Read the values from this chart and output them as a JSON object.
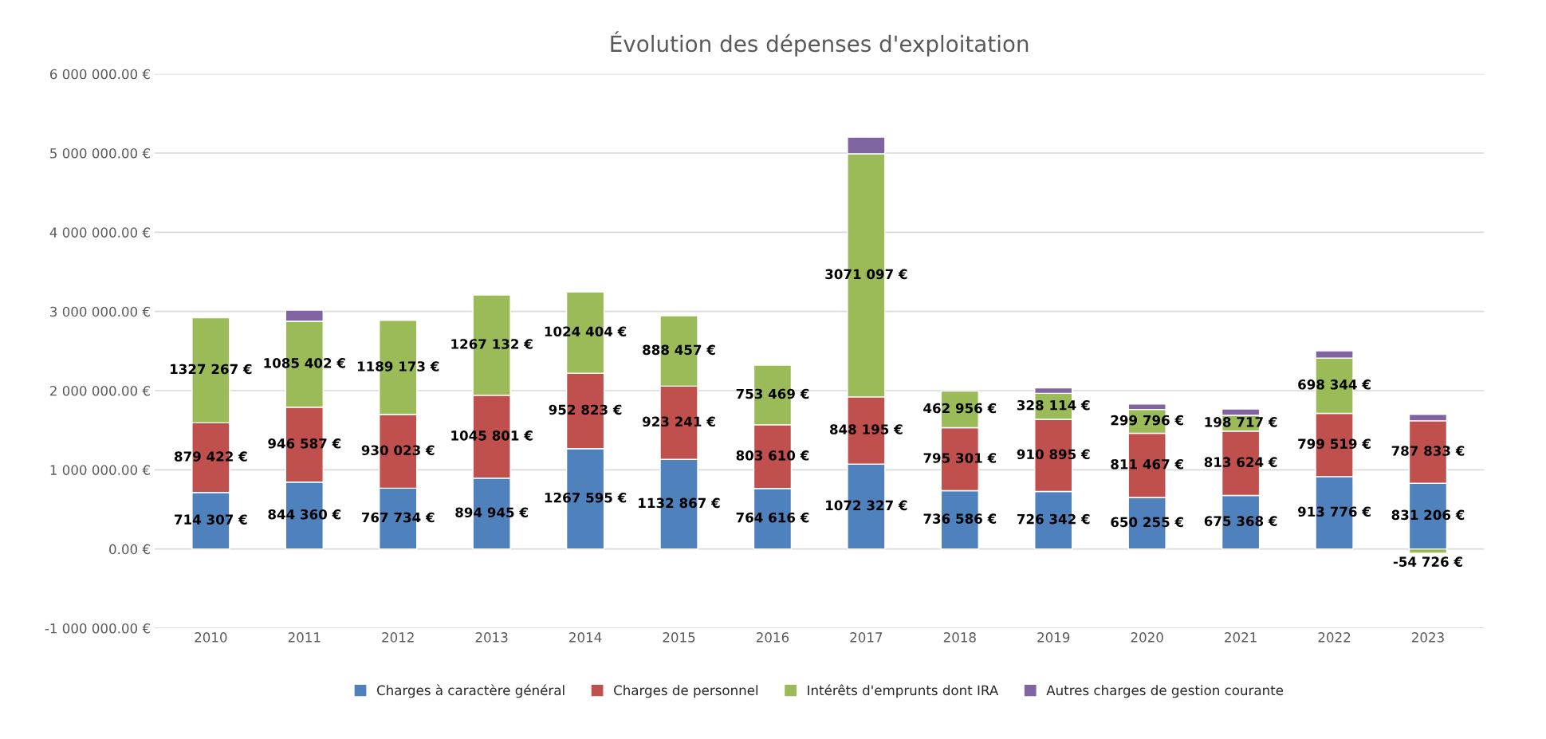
{
  "chart_data": {
    "type": "bar",
    "title": "Évolution des dépenses d'exploitation",
    "stacked": true,
    "grid": "y",
    "legend": "bottom",
    "categories": [
      "2010",
      "2011",
      "2012",
      "2013",
      "2014",
      "2015",
      "2016",
      "2017",
      "2018",
      "2019",
      "2020",
      "2021",
      "2022",
      "2023"
    ],
    "ylim": [
      -1000000,
      6000000
    ],
    "yticks": [
      {
        "value": -1000000,
        "label": "-1 000 000.00 €"
      },
      {
        "value": 0,
        "label": "0.00 €"
      },
      {
        "value": 1000000,
        "label": "1 000 000.00 €"
      },
      {
        "value": 2000000,
        "label": "2 000 000.00 €"
      },
      {
        "value": 3000000,
        "label": "3 000 000.00 €"
      },
      {
        "value": 4000000,
        "label": "4 000 000.00 €"
      },
      {
        "value": 5000000,
        "label": "5 000 000.00 €"
      },
      {
        "value": 6000000,
        "label": "6 000 000.00 €"
      }
    ],
    "series": [
      {
        "name": "Charges à caractère général",
        "color": "#4f81bd",
        "values": [
          714307,
          844360,
          767734,
          894945,
          1267595,
          1132867,
          764616,
          1072327,
          736586,
          726342,
          650255,
          675368,
          913776,
          831206
        ],
        "value_labels": [
          "714 307 €",
          "844 360 €",
          "767 734 €",
          "894 945 €",
          "1267 595 €",
          "1132 867 €",
          "764 616 €",
          "1072 327 €",
          "736 586 €",
          "726 342 €",
          "650 255 €",
          "675 368 €",
          "913 776 €",
          "831 206 €"
        ]
      },
      {
        "name": "Charges de personnel",
        "color": "#c0504d",
        "values": [
          879422,
          946587,
          930023,
          1045801,
          952823,
          923241,
          803610,
          848195,
          795301,
          910895,
          811467,
          813624,
          799519,
          787833
        ],
        "value_labels": [
          "879 422 €",
          "946 587 €",
          "930 023 €",
          "1045 801 €",
          "952 823 €",
          "923 241 €",
          "803 610 €",
          "848 195 €",
          "795 301 €",
          "910 895 €",
          "811 467 €",
          "813 624 €",
          "799 519 €",
          "787 833 €"
        ]
      },
      {
        "name": "Intérêts d'emprunts dont IRA",
        "color": "#9bbb59",
        "values": [
          1327267,
          1085402,
          1189173,
          1267132,
          1024404,
          888457,
          753469,
          3071097,
          462956,
          328114,
          299796,
          198717,
          698344,
          -54726
        ],
        "value_labels": [
          "1327 267 €",
          "1085 402 €",
          "1189 173 €",
          "1267 132 €",
          "1024 404 €",
          "888 457 €",
          "753 469 €",
          "3071 097 €",
          "462 956 €",
          "328 114 €",
          "299 796 €",
          "198 717 €",
          "698 344 €",
          "-54 726 €"
        ]
      },
      {
        "name": "Autres charges de gestion courante",
        "color": "#8064a2",
        "values": [
          null,
          140000,
          null,
          null,
          null,
          null,
          null,
          210000,
          null,
          70000,
          70000,
          80000,
          90000,
          80000
        ]
      }
    ]
  }
}
